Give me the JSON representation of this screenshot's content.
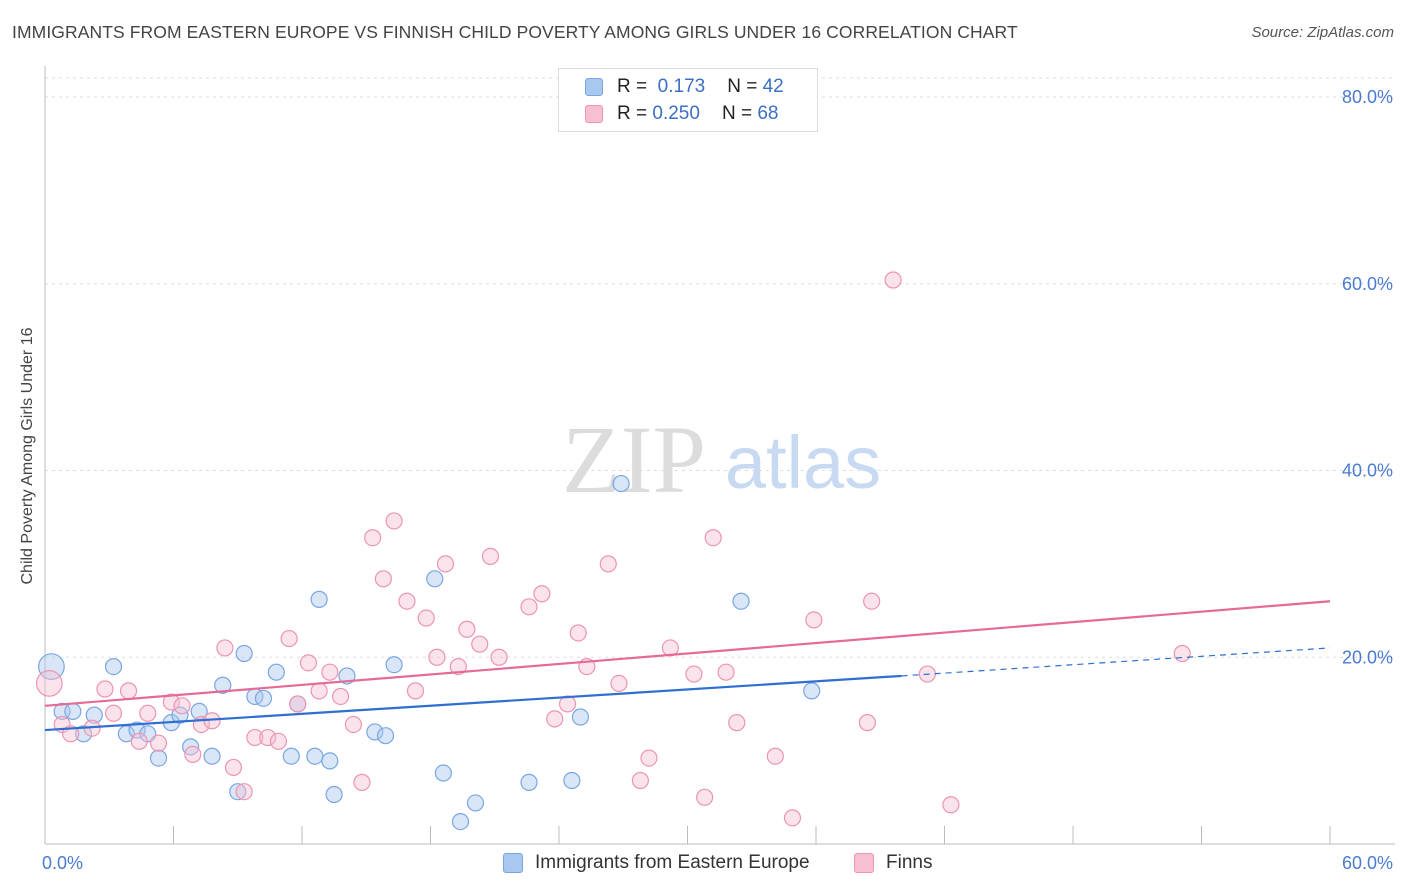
{
  "header": {
    "title": "IMMIGRANTS FROM EASTERN EUROPE VS FINNISH CHILD POVERTY AMONG GIRLS UNDER 16 CORRELATION CHART",
    "source": "Source: ZipAtlas.com"
  },
  "watermark": {
    "zip": "ZIP",
    "atlas": "atlas"
  },
  "legend": {
    "r_label": "R =",
    "n_label": "N =",
    "rows": [
      {
        "r": "0.173",
        "n": "42",
        "color": "#a9c8f0",
        "stroke": "#7aa6e0"
      },
      {
        "r": "0.250",
        "n": "68",
        "color": "#f7c0d2",
        "stroke": "#ec94b3"
      }
    ]
  },
  "colors": {
    "blue_line": "#2e6fd0",
    "pink_line": "#e46a98",
    "tick_text": "#4a7bd0",
    "grid": "#dddddd"
  },
  "chart_data": {
    "type": "scatter",
    "title": "IMMIGRANTS FROM EASTERN EUROPE VS FINNISH CHILD POVERTY AMONG GIRLS UNDER 16 CORRELATION CHART",
    "xlabel": "",
    "ylabel": "Child Poverty Among Girls Under 16",
    "xlim": [
      0,
      60
    ],
    "ylim": [
      0,
      80
    ],
    "x_tick_labels": [
      "0.0%",
      "60.0%"
    ],
    "y_tick_labels": [
      "20.0%",
      "40.0%",
      "60.0%",
      "80.0%"
    ],
    "y_ticks": [
      20,
      40,
      60,
      80
    ],
    "grid": true,
    "legend_position": "top-center",
    "series": [
      {
        "name": "Immigrants from Eastern Europe",
        "color": "#a9c8f0",
        "stroke": "#7aa6e0",
        "trend": {
          "x": [
            0,
            40
          ],
          "y": [
            12.2,
            18.0
          ],
          "dashed_to": [
            60,
            21.0
          ]
        },
        "points": [
          [
            0.3,
            19.0,
            1.6
          ],
          [
            0.8,
            14.2,
            1
          ],
          [
            1.3,
            14.2,
            1
          ],
          [
            1.8,
            11.8,
            1
          ],
          [
            2.3,
            13.8,
            1
          ],
          [
            3.2,
            19.0,
            1
          ],
          [
            3.8,
            11.8,
            1
          ],
          [
            4.3,
            12.2,
            1
          ],
          [
            4.8,
            11.8,
            1
          ],
          [
            5.3,
            9.2,
            1
          ],
          [
            5.9,
            13.0,
            1
          ],
          [
            6.3,
            13.8,
            1
          ],
          [
            6.8,
            10.4,
            1
          ],
          [
            7.2,
            14.2,
            1
          ],
          [
            7.8,
            9.4,
            1
          ],
          [
            8.3,
            17.0,
            1
          ],
          [
            9.0,
            5.6,
            1
          ],
          [
            9.3,
            20.4,
            1
          ],
          [
            9.8,
            15.8,
            1
          ],
          [
            10.2,
            15.6,
            1
          ],
          [
            10.8,
            18.4,
            1
          ],
          [
            11.5,
            9.4,
            1
          ],
          [
            11.8,
            15.0,
            1
          ],
          [
            12.6,
            9.4,
            1
          ],
          [
            12.8,
            26.2,
            1
          ],
          [
            13.3,
            8.9,
            1
          ],
          [
            13.5,
            5.3,
            1
          ],
          [
            14.1,
            18.0,
            1
          ],
          [
            15.4,
            12.0,
            1
          ],
          [
            15.9,
            11.6,
            1
          ],
          [
            16.3,
            19.2,
            1
          ],
          [
            18.2,
            28.4,
            1
          ],
          [
            18.6,
            7.6,
            1
          ],
          [
            19.4,
            2.4,
            1
          ],
          [
            20.1,
            4.4,
            1
          ],
          [
            22.6,
            6.6,
            1
          ],
          [
            24.6,
            6.8,
            1
          ],
          [
            25.0,
            13.6,
            1
          ],
          [
            26.9,
            38.6,
            1
          ],
          [
            32.5,
            26.0,
            1
          ],
          [
            35.8,
            16.4,
            1
          ]
        ]
      },
      {
        "name": "Finns",
        "color": "#f7c0d2",
        "stroke": "#ec94b3",
        "trend": {
          "x": [
            0,
            60
          ],
          "y": [
            14.8,
            26.0
          ]
        },
        "points": [
          [
            0.2,
            17.2,
            1.6
          ],
          [
            0.8,
            12.8,
            1
          ],
          [
            1.2,
            11.8,
            1
          ],
          [
            2.2,
            12.4,
            1
          ],
          [
            2.8,
            16.6,
            1
          ],
          [
            3.2,
            14.0,
            1
          ],
          [
            3.9,
            16.4,
            1
          ],
          [
            4.4,
            11.0,
            1
          ],
          [
            4.8,
            14.0,
            1
          ],
          [
            5.3,
            10.8,
            1
          ],
          [
            5.9,
            15.2,
            1
          ],
          [
            6.4,
            14.8,
            1
          ],
          [
            6.9,
            9.6,
            1
          ],
          [
            7.3,
            12.8,
            1
          ],
          [
            7.8,
            13.2,
            1
          ],
          [
            8.4,
            21.0,
            1
          ],
          [
            8.8,
            8.2,
            1
          ],
          [
            9.3,
            5.6,
            1
          ],
          [
            9.8,
            11.4,
            1
          ],
          [
            10.4,
            11.4,
            1
          ],
          [
            10.9,
            11.0,
            1
          ],
          [
            11.4,
            22.0,
            1
          ],
          [
            11.8,
            15.0,
            1
          ],
          [
            12.3,
            19.4,
            1
          ],
          [
            12.8,
            16.4,
            1
          ],
          [
            13.3,
            18.4,
            1
          ],
          [
            13.8,
            15.8,
            1
          ],
          [
            14.4,
            12.8,
            1
          ],
          [
            14.8,
            6.6,
            1
          ],
          [
            15.3,
            32.8,
            1
          ],
          [
            15.8,
            28.4,
            1
          ],
          [
            16.3,
            34.6,
            1
          ],
          [
            16.9,
            26.0,
            1
          ],
          [
            17.3,
            16.4,
            1
          ],
          [
            17.8,
            24.2,
            1
          ],
          [
            18.3,
            20.0,
            1
          ],
          [
            18.7,
            30.0,
            1
          ],
          [
            19.3,
            19.0,
            1
          ],
          [
            19.7,
            23.0,
            1
          ],
          [
            20.3,
            21.4,
            1
          ],
          [
            20.8,
            30.8,
            1
          ],
          [
            21.2,
            20.0,
            1
          ],
          [
            22.6,
            25.4,
            1
          ],
          [
            23.2,
            26.8,
            1
          ],
          [
            23.8,
            13.4,
            1
          ],
          [
            24.4,
            15.0,
            1
          ],
          [
            24.9,
            22.6,
            1
          ],
          [
            25.3,
            19.0,
            1
          ],
          [
            26.3,
            30.0,
            1
          ],
          [
            26.8,
            17.2,
            1
          ],
          [
            27.8,
            6.8,
            1
          ],
          [
            28.2,
            9.2,
            1
          ],
          [
            29.2,
            21.0,
            1
          ],
          [
            30.3,
            18.2,
            1
          ],
          [
            30.8,
            5.0,
            1
          ],
          [
            31.2,
            32.8,
            1
          ],
          [
            31.8,
            18.4,
            1
          ],
          [
            32.3,
            13.0,
            1
          ],
          [
            34.1,
            9.4,
            1
          ],
          [
            34.9,
            2.8,
            1
          ],
          [
            35.9,
            24.0,
            1
          ],
          [
            38.4,
            13.0,
            1
          ],
          [
            38.6,
            26.0,
            1
          ],
          [
            39.6,
            60.4,
            1
          ],
          [
            41.2,
            18.2,
            1
          ],
          [
            42.3,
            4.2,
            1
          ],
          [
            53.1,
            20.4,
            1
          ]
        ]
      }
    ]
  },
  "bottom_legend": [
    {
      "label": "Immigrants from Eastern Europe",
      "color": "#a9c8f0",
      "stroke": "#7aa6e0"
    },
    {
      "label": "Finns",
      "color": "#f7c0d2",
      "stroke": "#ec94b3"
    }
  ]
}
